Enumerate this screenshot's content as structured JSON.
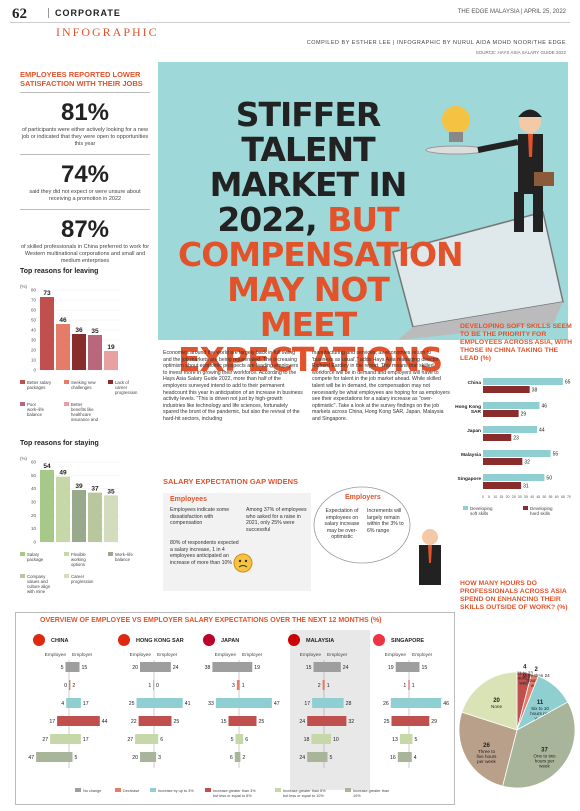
{
  "header": {
    "page_number": "62",
    "section": "CORPORATE",
    "section_sub": "INFOGRAPHIC",
    "publication": "THE EDGE MALAYSIA | APRIL 25, 2022",
    "credits": "COMPILED BY ESTHER LEE | INFOGRAPHIC BY NURUL AIDA MOHD NOOR/THE EDGE",
    "source": "SOURCE: HAYS ASIA SALARY GUIDE 2022"
  },
  "headline": {
    "line1": "STIFFER TALENT MARKET IN 2022,",
    "line2": "BUT COMPENSATION MAY NOT MEET EXPECTATIONS"
  },
  "satisfaction": {
    "title": "EMPLOYEES REPORTED LOWER SATISFACTION WITH THEIR JOBS",
    "stats": [
      {
        "value": "81%",
        "text": "of participants were either actively looking for a new job or indicated that they were open to opportunities this year"
      },
      {
        "value": "74%",
        "text": "said they did not expect or were unsure about receiving a promotion in 2022"
      },
      {
        "value": "87%",
        "text": "of skilled professionals in China preferred to work for Western multinational corporations and small and medium enterprises"
      }
    ]
  },
  "body_text": {
    "col1": "Economies around the world are largely back in full swing and the job markets are being rejuvenated. The increasing optimism about economic prospects are leading employers to invest more in growing their workforce. According to the Hays Asia Salary Guide 2022, more than half of the employers surveyed intend to add to their permanent headcount this year in anticipation of an increase in business activity levels. \"This is driven not just by high-growth industries like technology and life sciences, fortunately spared the brunt of the pandemic, but also the revival of the hard-hit sectors, including",
    "col2": "manufacturing and services, as economies return to 'business as usual',\" adds Hays Asia managing director Richard Eardley in the report. This means that skilled workforce will be in demand and employers will have to compete for talent in the job market ahead. While skilled talent will be in demand, the compensation may not necessarily be what employees are hoping for as employers see their expectations for a salary increase as \"over-optimistic\". Take a look at the survey findings on the job markets across China, Hong Kong SAR, Japan, Malaysia and Singapore."
  },
  "gap": {
    "title": "SALARY EXPECTATION GAP WIDENS",
    "employees_label": "Employees",
    "employers_label": "Employers",
    "emp1": "Employees indicate some dissatisfaction with compensation",
    "emp2": "Among 37% of employees who asked for a raise in 2021, only 25% were successful",
    "emp3": "80% of respondents expected a salary increase, 1 in 4 employees anticipated an increase of more than 10%",
    "er1": "Expectation of employees on salary increase may be over-optimistic",
    "er2": "Increments will largely remain within the 3% to 6% range"
  },
  "chart_data": [
    {
      "type": "bar",
      "title": "Top reasons for leaving",
      "ylabel": "(%)",
      "ylim": [
        0,
        80
      ],
      "yticks": [
        0,
        10,
        20,
        30,
        40,
        50,
        60,
        70,
        80
      ],
      "categories": [
        "Better salary packages",
        "Seeking new challenges",
        "Lack of career progression",
        "Poor work–life balance",
        "Better benefits like healthcare insurance and allowance"
      ],
      "values": [
        73,
        46,
        36,
        35,
        19
      ],
      "colors": [
        "#c0504d",
        "#e57b69",
        "#8b2c2c",
        "#b8687a",
        "#e8a0a0"
      ]
    },
    {
      "type": "bar",
      "title": "Top reasons for staying",
      "ylabel": "(%)",
      "ylim": [
        0,
        60
      ],
      "yticks": [
        0,
        10,
        20,
        30,
        40,
        50,
        60
      ],
      "categories": [
        "Salary package",
        "Flexible working options",
        "Work–life balance",
        "Company values and culture align with mine",
        "Career progression"
      ],
      "values": [
        54,
        49,
        39,
        37,
        35
      ],
      "colors": [
        "#a6c98a",
        "#c7d8a8",
        "#98a98c",
        "#b8c79c",
        "#d3dcbc"
      ]
    },
    {
      "type": "bar",
      "orientation": "horizontal",
      "title": "DEVELOPING SOFT SKILLS SEEM TO BE THE PRIORITY FOR EMPLOYEES ACROSS ASIA, WITH THOSE IN CHINA TAKING THE LEAD (%)",
      "categories": [
        "China",
        "Hong Kong SAR",
        "Japan",
        "Malaysia",
        "Singapore"
      ],
      "xlim": [
        0,
        70
      ],
      "xticks": [
        0,
        5,
        10,
        15,
        20,
        25,
        30,
        35,
        40,
        45,
        50,
        55,
        60,
        65,
        70
      ],
      "series": [
        {
          "name": "Developing soft skills",
          "values": [
            65,
            46,
            44,
            55,
            50
          ],
          "color": "#8fcfd1"
        },
        {
          "name": "Developing hard skills",
          "values": [
            38,
            29,
            23,
            32,
            31
          ],
          "color": "#8b2c2c"
        }
      ]
    },
    {
      "type": "pie",
      "title": "HOW MANY HOURS DO PROFESSIONALS ACROSS ASIA SPEND ON ENHANCING THEIR SKILLS OUTSIDE OF WORK? (%)",
      "slices": [
        {
          "label": "11 to 23 hours per week",
          "value": 4,
          "color": "#c0504d"
        },
        {
          "label": "More than 24 hours per week",
          "value": 2,
          "color": "#e57b69"
        },
        {
          "label": "Six to 10 hours per week",
          "value": 11,
          "color": "#8fcfd1"
        },
        {
          "label": "One to two hours per week",
          "value": 37,
          "color": "#a9b59a"
        },
        {
          "label": "Three to five hours per week",
          "value": 26,
          "color": "#b9a08a"
        },
        {
          "label": "None",
          "value": 20,
          "color": "#d9e3b5"
        }
      ]
    },
    {
      "type": "bar",
      "orientation": "diverging",
      "title": "OVERVIEW OF EMPLOYEE VS EMPLOYER SALARY EXPECTATIONS OVER THE NEXT 12 MONTHS (%)",
      "column_labels": [
        "Employee",
        "Employer"
      ],
      "categories": [
        "No change",
        "Decrease",
        "Increase by up to 3%",
        "Increase greater than 3% but less or equal to 6%",
        "Increase greater than 6% but less or equal to 10%",
        "Increase greater than 10%"
      ],
      "colors": [
        "#9e9e9e",
        "#e57b69",
        "#8fcfd1",
        "#c0504d",
        "#c7d8a8",
        "#a9b59a"
      ],
      "countries": [
        {
          "name": "CHINA",
          "employee": [
            5,
            0,
            4,
            17,
            27,
            47
          ],
          "employer": [
            15,
            2,
            17,
            44,
            17,
            5
          ]
        },
        {
          "name": "HONG KONG SAR",
          "employee": [
            20,
            1,
            25,
            22,
            27,
            20
          ],
          "employer": [
            24,
            0,
            41,
            25,
            6,
            3
          ]
        },
        {
          "name": "JAPAN",
          "employee": [
            38,
            3,
            33,
            15,
            5,
            6
          ],
          "employer": [
            19,
            1,
            47,
            25,
            6,
            2
          ]
        },
        {
          "name": "MALAYSIA",
          "employee": [
            15,
            2,
            17,
            24,
            18,
            24
          ],
          "employer": [
            24,
            1,
            28,
            32,
            10,
            5
          ]
        },
        {
          "name": "SINGAPORE",
          "employee": [
            19,
            1,
            26,
            25,
            13,
            16
          ],
          "employer": [
            15,
            1,
            46,
            29,
            5,
            4
          ]
        }
      ]
    }
  ]
}
